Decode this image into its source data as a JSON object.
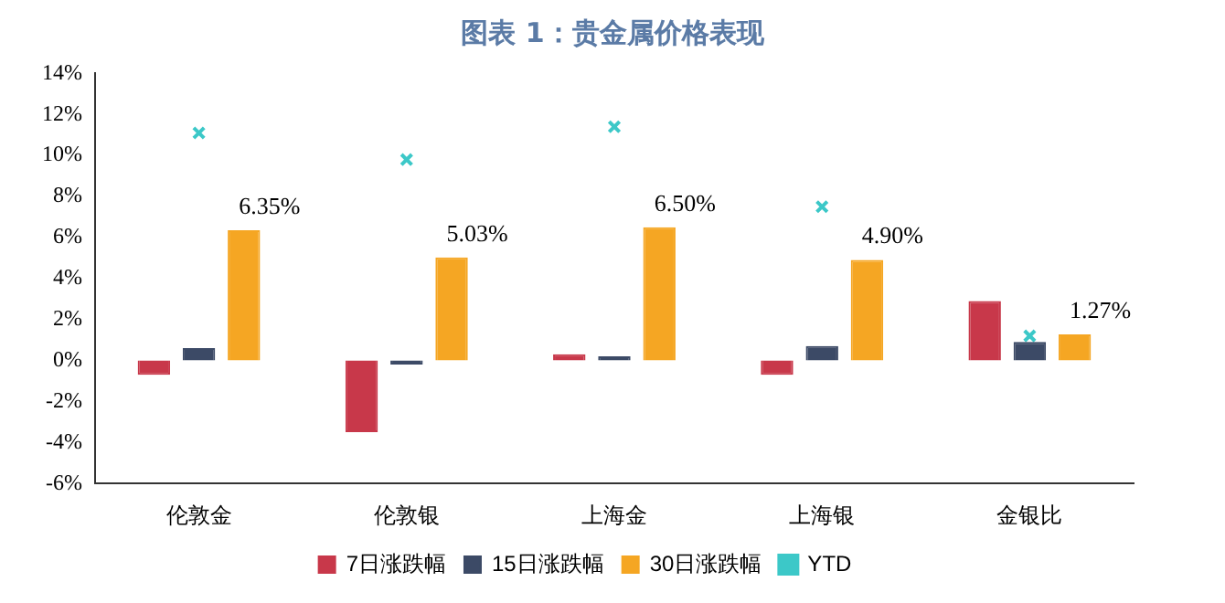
{
  "chart_data": {
    "type": "bar",
    "title": "图表 1：贵金属价格表现",
    "categories": [
      "伦敦金",
      "伦敦银",
      "上海金",
      "上海银",
      "金银比"
    ],
    "series": [
      {
        "name": "7日涨跌幅",
        "color": "#c8384a",
        "values": [
          -0.7,
          -3.5,
          0.3,
          -0.7,
          2.9
        ]
      },
      {
        "name": "15日涨跌幅",
        "color": "#3c4a66",
        "values": [
          0.6,
          -0.2,
          0.2,
          0.7,
          0.9
        ]
      },
      {
        "name": "30日涨跌幅",
        "color": "#f5a623",
        "values": [
          6.35,
          5.03,
          6.5,
          4.9,
          1.27
        ],
        "value_labels": [
          "6.35%",
          "5.03%",
          "6.50%",
          "4.90%",
          "1.27%"
        ]
      },
      {
        "name": "YTD",
        "type": "scatter",
        "color": "#3cc8c8",
        "marker": "cross",
        "x": [
          "伦敦金",
          "伦敦银",
          "上海金",
          "上海银",
          "金银比"
        ],
        "values": [
          11.1,
          9.8,
          11.4,
          7.5,
          1.2
        ]
      }
    ],
    "ylim": [
      -6,
      14
    ],
    "yticks": [
      {
        "value": -6,
        "label": "-6%"
      },
      {
        "value": -4,
        "label": "-4%"
      },
      {
        "value": -2,
        "label": "-2%"
      },
      {
        "value": 0,
        "label": "0%"
      },
      {
        "value": 2,
        "label": "2%"
      },
      {
        "value": 4,
        "label": "4%"
      },
      {
        "value": 6,
        "label": "6%"
      },
      {
        "value": 8,
        "label": "8%"
      },
      {
        "value": 10,
        "label": "10%"
      },
      {
        "value": 12,
        "label": "12%"
      },
      {
        "value": 14,
        "label": "14%"
      }
    ],
    "grid": false,
    "legend": "bottom"
  }
}
